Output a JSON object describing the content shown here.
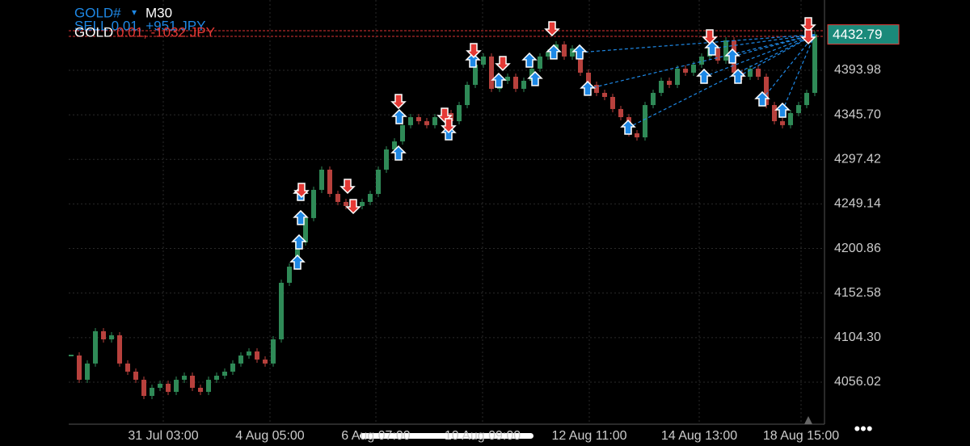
{
  "header": {
    "symbol": "GOLD#",
    "timeframe": "M30",
    "position_1": "SELL 0.01, +951 JPY",
    "position_2_symbol": "GOLD",
    "position_2_details": "0.01, -1032 JPY"
  },
  "chart_data": {
    "type": "candlestick",
    "price": [
      4084.9,
      4058.6,
      4076.2,
      4111.2,
      4102.4,
      4106.8,
      4076.2,
      4067.4,
      4058.6,
      4041.1,
      4049.9,
      4054.3,
      4045.5,
      4058.6,
      4063.0,
      4049.9,
      4045.5,
      4058.6,
      4063.0,
      4067.4,
      4076.2,
      4084.9,
      4089.3,
      4080.5,
      4076.2,
      4102.4,
      4163.7,
      4181.2,
      4207.5,
      4233.8,
      4264.4,
      4286.3,
      4260.0,
      4251.3,
      4246.9,
      4246.9,
      4251.3,
      4260.0,
      4286.3,
      4308.2,
      4316.9,
      4334.5,
      4343.2,
      4338.8,
      4334.5,
      4343.2,
      4347.6,
      4338.8,
      4356.3,
      4378.2,
      4400.1,
      4408.9,
      4373.9,
      4382.6,
      4387.0,
      4373.9,
      4382.6,
      4395.7,
      4408.9,
      4413.3,
      4422.0,
      4408.9,
      4417.6,
      4391.4,
      4378.2,
      4369.5,
      4365.1,
      4352.0,
      4343.2,
      4325.7,
      4321.3,
      4356.3,
      4369.5,
      4382.6,
      4378.2,
      4395.7,
      4391.4,
      4400.1,
      4408.9,
      4417.6,
      4404.5,
      4426.4,
      4391.4,
      4387.0,
      4395.7,
      4387.0,
      4356.3,
      4338.8,
      4334.5,
      4347.6,
      4356.3,
      4369.5,
      4432.79
    ],
    "up_color": "#2f8a57",
    "down_color": "#b8413d",
    "buy_trades": {
      "color": "#1e88e5",
      "x": [
        28.4,
        28.4,
        28.2,
        28.0,
        40.5,
        40.6,
        46.7,
        49.7,
        52.9,
        56.7,
        57.4,
        59.7,
        62.9,
        63.9,
        68.9,
        78.3,
        79.3,
        81.8,
        82.5,
        85.5,
        88.0
      ],
      "values": [
        4260.0,
        4233.8,
        4207.5,
        4185.6,
        4303.8,
        4343.2,
        4325.7,
        4404.5,
        4382.6,
        4404.5,
        4384.4,
        4413.3,
        4413.3,
        4373.9,
        4331.8,
        4387.0,
        4417.6,
        4408.9,
        4387.0,
        4362.5,
        4350.2
      ]
    },
    "sell_trades": {
      "color": "#e53935",
      "x": [
        28.5,
        34.2,
        34.9,
        40.5,
        46.2,
        46.7,
        49.8,
        53.4,
        59.5,
        79.0,
        91.2,
        91.2
      ],
      "values": [
        4264.4,
        4268.8,
        4246.9,
        4360.7,
        4345.8,
        4334.5,
        4415.9,
        4401.9,
        4439.5,
        4430.8,
        4443.9,
        4430.8
      ]
    },
    "position_lines": [
      4436.9,
      4430.8
    ],
    "xlim": [
      0,
      93
    ],
    "xticks": [
      {
        "value": 11.4,
        "label": "31 Jul 03:00"
      },
      {
        "value": 24.6,
        "label": "4 Aug 05:00"
      },
      {
        "value": 37.7,
        "label": "6 Aug 07:00"
      },
      {
        "value": 50.9,
        "label": "10 Aug 09:00"
      },
      {
        "value": 64.1,
        "label": "12 Aug 11:00"
      },
      {
        "value": 77.7,
        "label": "14 Aug 13:00"
      },
      {
        "value": 90.3,
        "label": "18 Aug 15:00"
      }
    ],
    "ylim": [
      4010.47,
      4470.15
    ],
    "yticks": [
      4393.98,
      {
        "value": 4345.7,
        "label": "4345.70"
      },
      4297.42,
      4249.14,
      4200.86,
      4152.58,
      {
        "value": 4104.3,
        "label": "4104.30"
      },
      4056.02
    ],
    "grid": true
  }
}
